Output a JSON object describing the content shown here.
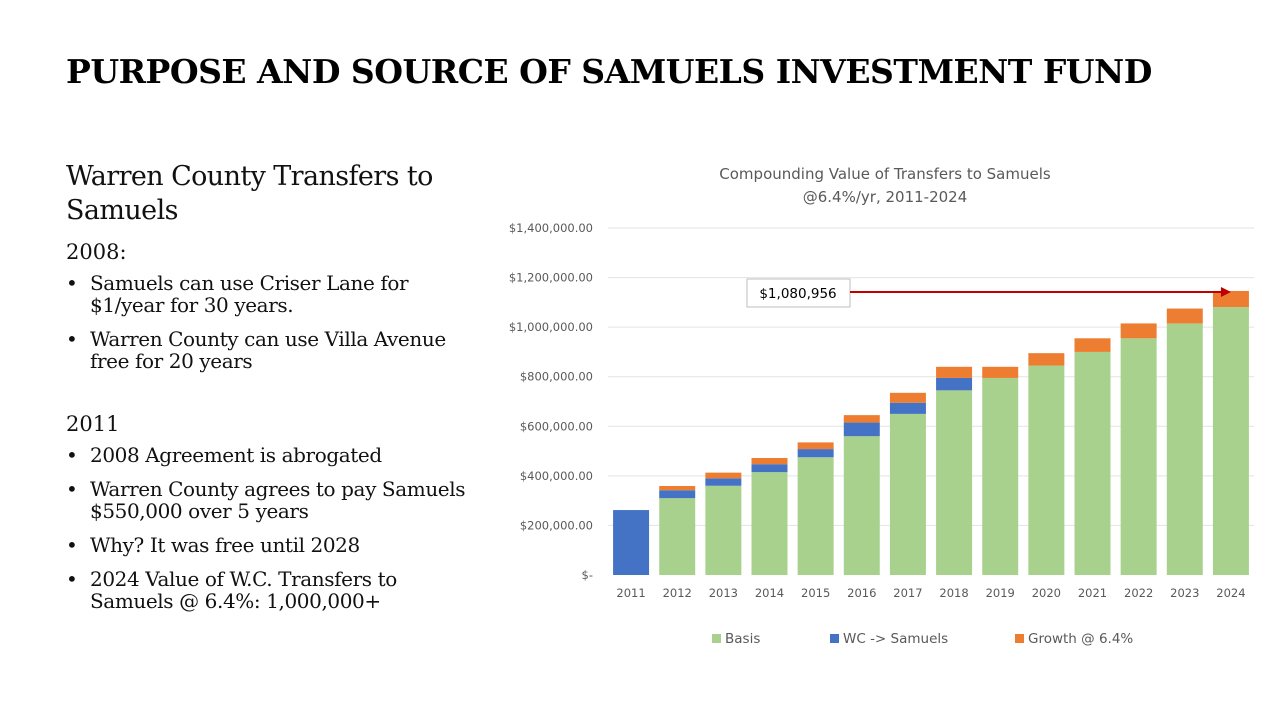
{
  "slide": {
    "title": "PURPOSE AND SOURCE OF SAMUELS INVESTMENT FUND",
    "subheading": "Warren County Transfers to Samuels",
    "sections": [
      {
        "year": "2008:",
        "bullets": [
          "Samuels can use Criser Lane for $1/year for 30 years.",
          "Warren County can use Villa Avenue free for 20 years"
        ]
      },
      {
        "year": "2011",
        "bullets": [
          "2008 Agreement is abrogated",
          "Warren County agrees to pay Samuels $550,000 over 5 years",
          "Why? It was free until 2028",
          "2024 Value of W.C. Transfers to Samuels @ 6.4%: 1,000,000+"
        ]
      }
    ]
  },
  "chart_data": {
    "type": "bar",
    "stacked": true,
    "title": "Compounding Value of Transfers to Samuels",
    "subtitle": "@6.4%/yr, 2011-2024",
    "categories": [
      "2011",
      "2012",
      "2013",
      "2014",
      "2015",
      "2016",
      "2017",
      "2018",
      "2019",
      "2020",
      "2021",
      "2022",
      "2023",
      "2024"
    ],
    "series": [
      {
        "name": "Basis",
        "color": "#a9d18e",
        "values": [
          0,
          310000,
          360000,
          415000,
          475000,
          560000,
          650000,
          745000,
          795000,
          845000,
          900000,
          955000,
          1015000,
          1080956
        ]
      },
      {
        "name": "WC -> Samuels",
        "color": "#4472c4",
        "values": [
          262000,
          32000,
          30000,
          32000,
          33000,
          55000,
          45000,
          50000,
          0,
          0,
          0,
          0,
          0,
          0
        ]
      },
      {
        "name": "Growth @ 6.4%",
        "color": "#ed7d31",
        "values": [
          0,
          17000,
          23000,
          25000,
          27000,
          30000,
          40000,
          45000,
          45000,
          50000,
          55000,
          60000,
          60000,
          65000
        ]
      }
    ],
    "ylim": [
      0,
      1400000
    ],
    "yticks": [
      "$-",
      "$200,000.00",
      "$400,000.00",
      "$600,000.00",
      "$800,000.00",
      "$1,000,000.00",
      "$1,200,000.00",
      "$1,400,000.00"
    ],
    "grid": true,
    "legend": "bottom",
    "annotation": {
      "label": "$1,080,956",
      "target_category": "2024",
      "arrow_color": "#c00000"
    }
  }
}
